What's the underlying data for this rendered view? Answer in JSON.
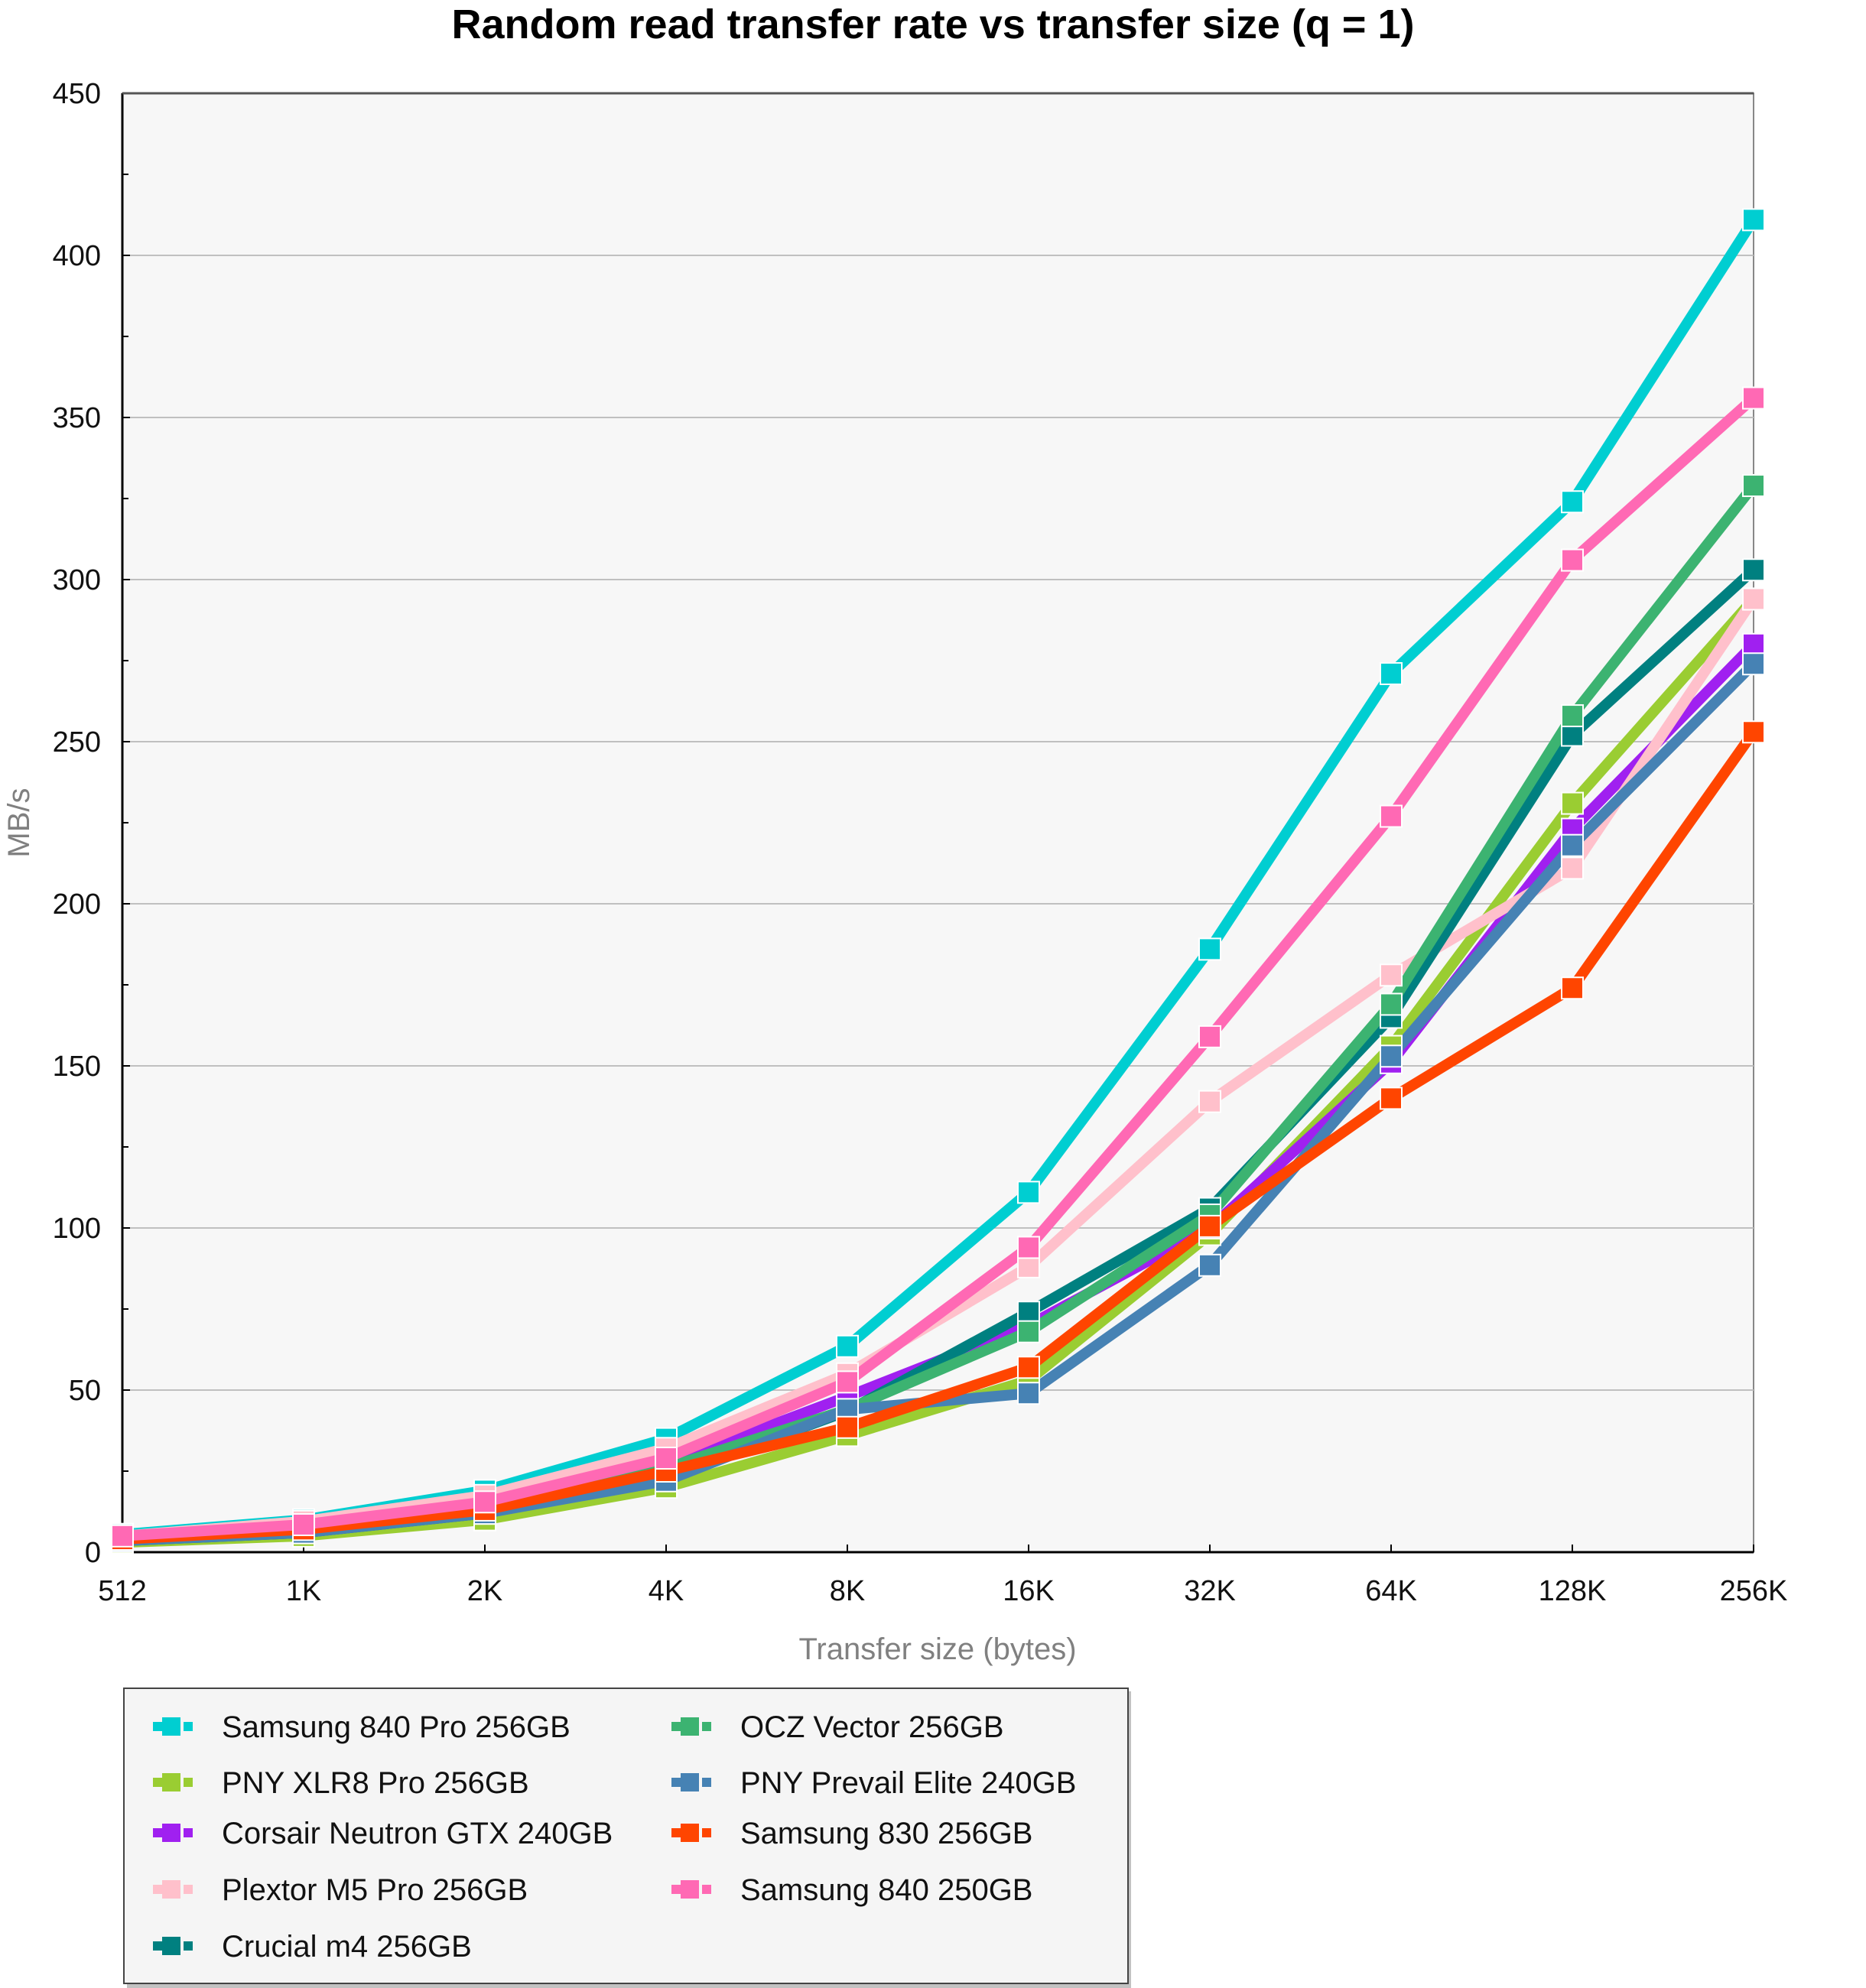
{
  "chart_data": {
    "type": "line",
    "title": "Random read transfer rate vs transfer size (q = 1)",
    "xlabel": "Transfer size (bytes)",
    "ylabel": "MB/s",
    "x": [
      "512",
      "1K",
      "2K",
      "4K",
      "8K",
      "16K",
      "32K",
      "64K",
      "128K",
      "256K"
    ],
    "yticks": [
      0,
      50,
      100,
      150,
      200,
      250,
      300,
      350,
      400,
      450
    ],
    "ylim": [
      0,
      450
    ],
    "grid": true,
    "legend_position": "bottom-left",
    "series": [
      {
        "name": "Samsung 840 Pro 256GB",
        "color": "#00CED1",
        "values": [
          5.5,
          10,
          19,
          35,
          63.5,
          111,
          186,
          271,
          324,
          411
        ]
      },
      {
        "name": "PNY XLR8 Pro 256GB",
        "color": "#9ACD32",
        "values": [
          3,
          5,
          10,
          20,
          36,
          53,
          98,
          156,
          231,
          294
        ]
      },
      {
        "name": "Corsair Neutron GTX 240GB",
        "color": "#A020F0",
        "values": [
          4,
          7,
          13,
          27,
          48,
          70,
          100,
          151,
          223,
          280
        ]
      },
      {
        "name": "Plextor M5 Pro 256GB",
        "color": "#FFC0CB",
        "values": [
          5,
          9.5,
          17.5,
          32,
          55,
          88,
          139,
          178,
          211,
          294
        ]
      },
      {
        "name": "Crucial m4 256GB",
        "color": "#008080",
        "values": [
          3.5,
          6,
          12,
          23,
          43.5,
          74,
          106,
          165,
          252,
          303
        ]
      },
      {
        "name": "OCZ Vector 256GB",
        "color": "#3CB371",
        "values": [
          4,
          6.5,
          12.5,
          26,
          44,
          68,
          104,
          169,
          258,
          329
        ]
      },
      {
        "name": "PNY Prevail Elite 240GB",
        "color": "#4682B4",
        "values": [
          3.5,
          6,
          12,
          22,
          44,
          49,
          88.5,
          153,
          218,
          274
        ]
      },
      {
        "name": "Samsung 830 256GB",
        "color": "#FF4500",
        "values": [
          4,
          7,
          13,
          25,
          38.5,
          57,
          100.5,
          140,
          174,
          253
        ]
      },
      {
        "name": "Samsung 840 250GB",
        "color": "#FF69B4",
        "values": [
          5,
          8.5,
          15.5,
          29,
          52.5,
          94,
          159,
          227,
          306,
          356
        ]
      }
    ]
  },
  "legend": {
    "columns": [
      [
        "Samsung 840 Pro 256GB",
        "PNY XLR8 Pro 256GB",
        "Corsair Neutron GTX 240GB",
        "Plextor M5 Pro 256GB",
        "Crucial m4 256GB"
      ],
      [
        "OCZ Vector 256GB",
        "PNY Prevail Elite 240GB",
        "Samsung 830 256GB",
        "Samsung 840 250GB"
      ]
    ]
  },
  "colors": {
    "plot_background": "#F7F7F7",
    "gridline": "#C0C0C0",
    "legend_background": "#F5F5F5"
  }
}
